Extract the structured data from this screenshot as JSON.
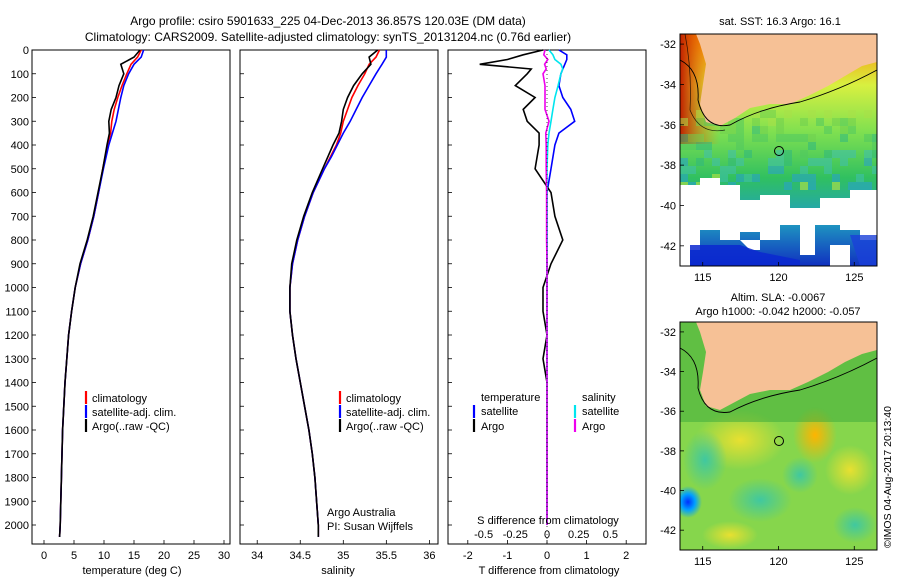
{
  "header": {
    "line1": "Argo profile: csiro 5901633_225 04-Dec-2013 36.857S 120.03E (DM data)",
    "line2": "Climatology: CARS2009. Satellite-adjusted climatology: synTS_20131204.nc (0.76d earlier)"
  },
  "colors": {
    "climatology": "#ff0000",
    "satellite": "#0000ff",
    "argo": "#000000",
    "satellite_salinity": "#00e5ee",
    "argo_salinity": "#ee00ee",
    "land": "#f6c196"
  },
  "chart_data": [
    {
      "type": "line",
      "id": "temperature",
      "xlabel": "temperature (deg C)",
      "ylabel": "depth",
      "xlim": [
        -2,
        31
      ],
      "ylim": [
        2080,
        0
      ],
      "xticks": [
        "0",
        "5",
        "10",
        "15",
        "20",
        "25",
        "30"
      ],
      "yticks": [
        "0",
        "100",
        "200",
        "300",
        "400",
        "500",
        "600",
        "700",
        "800",
        "900",
        "1000",
        "1100",
        "1200",
        "1300",
        "1400",
        "1500",
        "1600",
        "1700",
        "1800",
        "1900",
        "2000"
      ],
      "depth": [
        0,
        30,
        60,
        100,
        150,
        200,
        250,
        300,
        350,
        400,
        500,
        600,
        700,
        800,
        900,
        1000,
        1100,
        1200,
        1300,
        1400,
        1500,
        1600,
        1700,
        1800,
        1900,
        2000,
        2050
      ],
      "series": [
        {
          "name": "climatology",
          "values": [
            16.2,
            15.6,
            14.5,
            13.8,
            13.0,
            12.3,
            11.7,
            11.3,
            11.1,
            10.6,
            9.8,
            9.1,
            8.3,
            7.3,
            6.1,
            5.2,
            4.6,
            4.1,
            3.8,
            3.5,
            3.3,
            3.1,
            3.0,
            2.9,
            2.8,
            2.7,
            2.6
          ]
        },
        {
          "name": "satellite-adj. clim.",
          "values": [
            16.6,
            16.2,
            15.0,
            14.1,
            13.3,
            12.8,
            12.4,
            12.0,
            11.4,
            10.8,
            9.9,
            9.1,
            8.3,
            7.3,
            6.1,
            5.2,
            4.6,
            4.1,
            3.8,
            3.5,
            3.3,
            3.1,
            3.0,
            2.9,
            2.8,
            2.7,
            2.6
          ]
        },
        {
          "name": "Argo(..raw -QC)",
          "values": [
            16.0,
            15.0,
            12.8,
            13.3,
            12.5,
            12.0,
            11.2,
            10.8,
            10.9,
            10.5,
            9.8,
            9.0,
            8.2,
            7.2,
            6.0,
            5.2,
            4.6,
            4.1,
            3.8,
            3.5,
            3.3,
            3.1,
            3.0,
            2.9,
            2.8,
            2.7,
            2.6
          ]
        }
      ],
      "legend": [
        "climatology",
        "satellite-adj. clim.",
        "Argo(..raw -QC)"
      ]
    },
    {
      "type": "line",
      "id": "salinity",
      "xlabel": "salinity",
      "xlim": [
        33.8,
        36.1
      ],
      "ylim": [
        2080,
        0
      ],
      "xticks": [
        "34",
        "34.5",
        "35",
        "35.5",
        "36"
      ],
      "depth": [
        0,
        30,
        60,
        100,
        150,
        200,
        250,
        300,
        350,
        400,
        450,
        500,
        600,
        700,
        800,
        900,
        1000,
        1100,
        1200,
        1300,
        1400,
        1500,
        1600,
        1700,
        1800,
        1900,
        2000,
        2050
      ],
      "series": [
        {
          "name": "climatology",
          "values": [
            35.42,
            35.38,
            35.3,
            35.25,
            35.17,
            35.1,
            35.05,
            35.0,
            34.97,
            34.92,
            34.85,
            34.78,
            34.65,
            34.55,
            34.47,
            34.41,
            34.38,
            34.38,
            34.41,
            34.45,
            34.5,
            34.55,
            34.6,
            34.64,
            34.67,
            34.69,
            34.71,
            34.71
          ]
        },
        {
          "name": "satellite-adj. clim.",
          "values": [
            35.5,
            35.5,
            35.45,
            35.38,
            35.3,
            35.22,
            35.15,
            35.08,
            35.0,
            34.93,
            34.86,
            34.78,
            34.65,
            34.55,
            34.47,
            34.41,
            34.38,
            34.38,
            34.41,
            34.45,
            34.5,
            34.55,
            34.6,
            34.64,
            34.67,
            34.69,
            34.71,
            34.71
          ]
        },
        {
          "name": "Argo(..raw -QC)",
          "values": [
            35.4,
            35.3,
            35.32,
            35.22,
            35.12,
            35.05,
            35.0,
            34.98,
            34.95,
            34.88,
            34.82,
            34.76,
            34.64,
            34.54,
            34.46,
            34.4,
            34.38,
            34.38,
            34.41,
            34.45,
            34.5,
            34.55,
            34.6,
            34.64,
            34.67,
            34.69,
            34.71,
            34.71
          ]
        }
      ],
      "legend": [
        "climatology",
        "satellite-adj. clim.",
        "Argo(..raw -QC)"
      ],
      "annotation": [
        "Argo Australia",
        "PI: Susan Wijffels"
      ]
    },
    {
      "type": "line",
      "id": "differences",
      "xlabel": "T difference from climatology",
      "xlabel_top": "S difference from climatology",
      "xlim": [
        -2.5,
        2.5
      ],
      "ylim": [
        2080,
        0
      ],
      "xticks": [
        "-2",
        "-1",
        "0",
        "1",
        "2"
      ],
      "xticks_s": [
        "-0.5",
        "-0.25",
        "0",
        "0.25",
        "0.5"
      ],
      "depth": [
        0,
        20,
        40,
        60,
        80,
        100,
        150,
        200,
        250,
        300,
        350,
        400,
        500,
        600,
        700,
        800,
        900,
        1000,
        1100,
        1200,
        1300,
        1400,
        1600,
        1800,
        2000
      ],
      "series": [
        {
          "name": "temperature satellite",
          "values": [
            0.3,
            0.5,
            0.5,
            0.45,
            0.4,
            0.35,
            0.3,
            0.4,
            0.6,
            0.7,
            0.3,
            0.2,
            0.1,
            0.0,
            0.0,
            0.0,
            0.0,
            0.0,
            0.0,
            0.0,
            0.0,
            0.0,
            0.0,
            0.0,
            0.0
          ]
        },
        {
          "name": "temperature Argo",
          "values": [
            -0.1,
            -0.6,
            -1.0,
            -1.7,
            -0.4,
            -0.5,
            -0.8,
            -0.3,
            -0.6,
            -0.5,
            -0.2,
            -0.2,
            -0.3,
            0.1,
            0.2,
            0.4,
            0.1,
            -0.1,
            -0.1,
            0.0,
            -0.1,
            0.0,
            0.0,
            0.0,
            0.0
          ]
        },
        {
          "name": "salinity satellite",
          "values": [
            0.05,
            0.15,
            0.2,
            0.35,
            0.4,
            0.35,
            0.28,
            0.2,
            0.15,
            0.1,
            0.05,
            0.02,
            0.0,
            0.0,
            0.0,
            0.0,
            0.0,
            0.0,
            0.0,
            0.0,
            0.0,
            0.0,
            0.0,
            0.0,
            0.0
          ]
        },
        {
          "name": "salinity Argo",
          "values": [
            -0.05,
            -0.08,
            0.02,
            -0.06,
            -0.02,
            -0.1,
            -0.05,
            -0.05,
            -0.05,
            0.05,
            -0.03,
            -0.02,
            -0.02,
            -0.01,
            -0.01,
            -0.01,
            0.0,
            0.0,
            0.0,
            0.0,
            0.0,
            0.0,
            0.0,
            0.0,
            0.0
          ]
        }
      ],
      "legend_left": {
        "title": "temperature",
        "items": [
          "satellite",
          "Argo"
        ]
      },
      "legend_right": {
        "title": "salinity",
        "items": [
          "satellite",
          "Argo"
        ]
      }
    },
    {
      "type": "heatmap",
      "id": "sst-map",
      "title": "sat. SST: 16.3 Argo: 16.1",
      "xticks": [
        "115",
        "120",
        "125"
      ],
      "yticks": [
        "-32",
        "-34",
        "-36",
        "-38",
        "-40",
        "-42"
      ],
      "xlim": [
        113.5,
        126.5
      ],
      "ylim": [
        -43,
        -31.5
      ],
      "float_position": [
        120.03,
        -36.857
      ]
    },
    {
      "type": "heatmap",
      "id": "sla-map",
      "title_line1": "Altim. SLA: -0.0067",
      "title_line2": "Argo h1000: -0.042 h2000: -0.057",
      "xticks": [
        "115",
        "120",
        "125"
      ],
      "yticks": [
        "-32",
        "-34",
        "-36",
        "-38",
        "-40",
        "-42"
      ],
      "xlim": [
        113.5,
        126.5
      ],
      "ylim": [
        -43,
        -31.5
      ],
      "float_position": [
        120.03,
        -36.857
      ]
    }
  ],
  "credit": "©IMOS 04-Aug-2017 20:13:40"
}
